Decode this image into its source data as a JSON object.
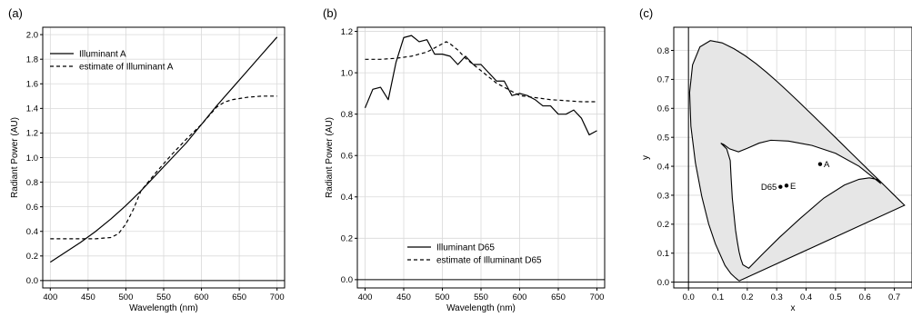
{
  "chart_data": [
    {
      "type": "line",
      "panel_label": "(a)",
      "xlabel": "Wavelength (nm)",
      "ylabel": "Radiant Power (AU)",
      "xlim": [
        390,
        710
      ],
      "ylim": [
        -0.06,
        2.06
      ],
      "xticks": [
        400,
        450,
        500,
        550,
        600,
        650,
        700
      ],
      "yticks": [
        0.0,
        0.2,
        0.4,
        0.6,
        0.8,
        1.0,
        1.2,
        1.4,
        1.6,
        1.8,
        2.0
      ],
      "ytick_labels": [
        "0.0",
        "0.2",
        "0.4",
        "0.6",
        "0.8",
        "1.0",
        "1.2",
        "1.4",
        "1.6",
        "1.8",
        "2.0"
      ],
      "grid": true,
      "legend": "top-left",
      "series": [
        {
          "name": "Illuminant A",
          "dash": "solid",
          "x": [
            400,
            420,
            440,
            460,
            480,
            500,
            520,
            540,
            560,
            580,
            600,
            620,
            640,
            660,
            680,
            700
          ],
          "y": [
            0.15,
            0.23,
            0.31,
            0.4,
            0.5,
            0.61,
            0.73,
            0.86,
            0.99,
            1.12,
            1.27,
            1.42,
            1.56,
            1.7,
            1.84,
            1.98
          ]
        },
        {
          "name": "estimate of Illuminant A",
          "dash": "dashed",
          "x": [
            400,
            420,
            440,
            460,
            480,
            490,
            500,
            510,
            520,
            540,
            560,
            580,
            600,
            610,
            620,
            630,
            640,
            650,
            660,
            680,
            700
          ],
          "y": [
            0.34,
            0.34,
            0.34,
            0.34,
            0.35,
            0.38,
            0.46,
            0.58,
            0.73,
            0.88,
            1.02,
            1.15,
            1.27,
            1.34,
            1.41,
            1.45,
            1.47,
            1.48,
            1.49,
            1.5,
            1.5
          ]
        }
      ]
    },
    {
      "type": "line",
      "panel_label": "(b)",
      "xlabel": "Wavelength (nm)",
      "ylabel": "Radiant Power (AU)",
      "xlim": [
        390,
        710
      ],
      "ylim": [
        -0.04,
        1.22
      ],
      "xticks": [
        400,
        450,
        500,
        550,
        600,
        650,
        700
      ],
      "yticks": [
        0.0,
        0.2,
        0.4,
        0.6,
        0.8,
        1.0,
        1.2
      ],
      "ytick_labels": [
        "0.0",
        "0.2",
        "0.4",
        "0.6",
        "0.8",
        "1.0",
        "1.2"
      ],
      "grid": true,
      "legend": "bottom-center",
      "series": [
        {
          "name": "Illuminant D65",
          "dash": "solid",
          "x": [
            400,
            410,
            420,
            430,
            440,
            450,
            460,
            470,
            480,
            490,
            500,
            510,
            520,
            530,
            540,
            550,
            560,
            570,
            580,
            590,
            600,
            610,
            620,
            630,
            640,
            650,
            660,
            670,
            680,
            690,
            700
          ],
          "y": [
            0.83,
            0.92,
            0.93,
            0.87,
            1.05,
            1.17,
            1.18,
            1.15,
            1.16,
            1.09,
            1.09,
            1.08,
            1.04,
            1.08,
            1.04,
            1.04,
            1.0,
            0.96,
            0.96,
            0.89,
            0.9,
            0.89,
            0.87,
            0.84,
            0.84,
            0.8,
            0.8,
            0.82,
            0.78,
            0.7,
            0.72
          ]
        },
        {
          "name": "estimate of Illuminant D65",
          "dash": "dashed",
          "x": [
            400,
            420,
            440,
            460,
            480,
            490,
            500,
            505,
            510,
            520,
            530,
            540,
            550,
            560,
            570,
            580,
            590,
            600,
            620,
            640,
            660,
            680,
            700
          ],
          "y": [
            1.065,
            1.065,
            1.07,
            1.08,
            1.1,
            1.12,
            1.14,
            1.15,
            1.14,
            1.11,
            1.07,
            1.04,
            1.01,
            0.98,
            0.95,
            0.93,
            0.91,
            0.89,
            0.88,
            0.87,
            0.865,
            0.86,
            0.86
          ]
        }
      ]
    },
    {
      "type": "scatter",
      "panel_label": "(c)",
      "xlabel": "x",
      "ylabel": "y",
      "xlim": [
        -0.05,
        0.76
      ],
      "ylim": [
        -0.02,
        0.88
      ],
      "xticks": [
        0.0,
        0.1,
        0.2,
        0.3,
        0.4,
        0.5,
        0.6,
        0.7
      ],
      "yticks": [
        0.0,
        0.1,
        0.2,
        0.3,
        0.4,
        0.5,
        0.6,
        0.7,
        0.8
      ],
      "xtick_labels": [
        "0.0",
        "0.1",
        "0.2",
        "0.3",
        "0.4",
        "0.5",
        "0.6",
        "0.7"
      ],
      "ytick_labels": [
        "0.0",
        "0.1",
        "0.2",
        "0.3",
        "0.4",
        "0.5",
        "0.6",
        "0.7",
        "0.8"
      ],
      "grid": true,
      "spectral_locus": {
        "x": [
          0.1741,
          0.1738,
          0.1725,
          0.1689,
          0.1644,
          0.1566,
          0.144,
          0.1241,
          0.0913,
          0.0687,
          0.0454,
          0.0235,
          0.0082,
          0.0039,
          0.0139,
          0.0389,
          0.0743,
          0.1142,
          0.1547,
          0.1929,
          0.2296,
          0.2658,
          0.3016,
          0.3373,
          0.3731,
          0.4087,
          0.4441,
          0.4788,
          0.5125,
          0.5448,
          0.5752,
          0.6029,
          0.627,
          0.6482,
          0.6658,
          0.6801,
          0.6915,
          0.7006,
          0.7079,
          0.714,
          0.719,
          0.723,
          0.726,
          0.7283,
          0.73,
          0.732,
          0.7347
        ],
        "y": [
          0.005,
          0.0049,
          0.0048,
          0.0069,
          0.0109,
          0.0177,
          0.0297,
          0.0578,
          0.1327,
          0.2007,
          0.295,
          0.4127,
          0.5384,
          0.6548,
          0.7502,
          0.812,
          0.8338,
          0.8262,
          0.8059,
          0.7816,
          0.7543,
          0.7243,
          0.6923,
          0.6589,
          0.6245,
          0.5896,
          0.5547,
          0.5202,
          0.4866,
          0.4544,
          0.4242,
          0.3965,
          0.3725,
          0.3514,
          0.334,
          0.3197,
          0.3083,
          0.2993,
          0.292,
          0.2859,
          0.2809,
          0.277,
          0.274,
          0.2717,
          0.27,
          0.268,
          0.2653
        ]
      },
      "region_boundary": {
        "x": [
          0.652,
          0.58,
          0.5,
          0.42,
          0.34,
          0.28,
          0.24,
          0.2,
          0.17,
          0.14,
          0.12,
          0.11,
          0.13,
          0.142,
          0.145,
          0.149,
          0.155,
          0.16,
          0.166,
          0.172,
          0.178,
          0.185,
          0.205,
          0.25,
          0.31,
          0.38,
          0.46,
          0.53,
          0.58,
          0.615,
          0.64,
          0.651,
          0.652
        ],
        "y": [
          0.342,
          0.4,
          0.445,
          0.472,
          0.487,
          0.49,
          0.48,
          0.462,
          0.45,
          0.46,
          0.475,
          0.48,
          0.46,
          0.42,
          0.36,
          0.29,
          0.23,
          0.18,
          0.14,
          0.105,
          0.08,
          0.06,
          0.048,
          0.095,
          0.155,
          0.22,
          0.29,
          0.335,
          0.355,
          0.36,
          0.355,
          0.348,
          0.342
        ]
      },
      "points": [
        {
          "label": "A",
          "x": 0.4476,
          "y": 0.4074
        },
        {
          "label": "D65",
          "x": 0.3127,
          "y": 0.329
        },
        {
          "label": "E",
          "x": 0.3333,
          "y": 0.3333
        }
      ]
    }
  ]
}
